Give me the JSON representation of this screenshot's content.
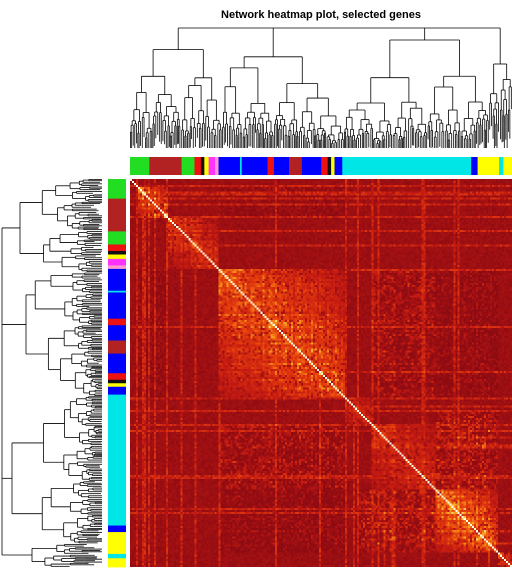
{
  "chart_data": {
    "type": "heatmap",
    "title": "Network heatmap plot, selected genes",
    "subtitle": "",
    "xlabel": "",
    "ylabel": "",
    "legend": "none",
    "grid": false,
    "colormap": [
      "#8b0a12",
      "#c41a12",
      "#e8420c",
      "#f7a21e",
      "#ffe38a",
      "#fffde2"
    ],
    "matrix_order": "dendrogram",
    "modules": [
      {
        "name": "green",
        "color": "#22dd22",
        "size": 0.045
      },
      {
        "name": "brown",
        "color": "#b22222",
        "size": 0.075
      },
      {
        "name": "green",
        "color": "#22dd22",
        "size": 0.03
      },
      {
        "name": "red",
        "color": "#ee1111",
        "size": 0.015
      },
      {
        "name": "black",
        "color": "#111111",
        "size": 0.008
      },
      {
        "name": "yellow",
        "color": "#ffff00",
        "size": 0.01
      },
      {
        "name": "magenta",
        "color": "#ff33ff",
        "size": 0.015
      },
      {
        "name": "pink",
        "color": "#ff99cc",
        "size": 0.008
      },
      {
        "name": "blue",
        "color": "#0000ff",
        "size": 0.05
      },
      {
        "name": "turquoise",
        "color": "#00e5e5",
        "size": 0.004
      },
      {
        "name": "blue",
        "color": "#0000ff",
        "size": 0.06
      },
      {
        "name": "red",
        "color": "#ee1111",
        "size": 0.015
      },
      {
        "name": "blue",
        "color": "#0000ff",
        "size": 0.035
      },
      {
        "name": "brown",
        "color": "#b22222",
        "size": 0.03
      },
      {
        "name": "blue",
        "color": "#0000ff",
        "size": 0.045
      },
      {
        "name": "red",
        "color": "#ee1111",
        "size": 0.015
      },
      {
        "name": "black",
        "color": "#111111",
        "size": 0.008
      },
      {
        "name": "yellow",
        "color": "#ffff00",
        "size": 0.008
      },
      {
        "name": "blue",
        "color": "#0000ff",
        "size": 0.018
      },
      {
        "name": "turquoise",
        "color": "#00e5e5",
        "size": 0.3
      },
      {
        "name": "blue",
        "color": "#0000ff",
        "size": 0.015
      },
      {
        "name": "yellow",
        "color": "#ffff00",
        "size": 0.05
      },
      {
        "name": "turquoise",
        "color": "#00e5e5",
        "size": 0.01
      },
      {
        "name": "yellow",
        "color": "#ffff00",
        "size": 0.02
      }
    ],
    "diagonal_blocks": [
      {
        "start": 0.02,
        "end": 0.1,
        "intensity": 0.8
      },
      {
        "start": 0.1,
        "end": 0.23,
        "intensity": 0.55
      },
      {
        "start": 0.23,
        "end": 0.56,
        "intensity": 0.75
      },
      {
        "start": 0.56,
        "end": 0.63,
        "intensity": 0.45
      },
      {
        "start": 0.63,
        "end": 0.8,
        "intensity": 0.5
      },
      {
        "start": 0.8,
        "end": 0.96,
        "intensity": 0.85
      },
      {
        "start": 0.96,
        "end": 1.0,
        "intensity": 0.6
      }
    ],
    "offdiagonal_blocks": [
      {
        "a": [
          0.23,
          0.56
        ],
        "b": [
          0.63,
          0.8
        ],
        "intensity": 0.35
      },
      {
        "a": [
          0.6,
          0.8
        ],
        "b": [
          0.8,
          0.96
        ],
        "intensity": 0.45
      },
      {
        "a": [
          0.02,
          0.1
        ],
        "b": [
          0.23,
          0.56
        ],
        "intensity": 0.2
      },
      {
        "a": [
          0.23,
          0.56
        ],
        "b": [
          0.8,
          0.96
        ],
        "intensity": 0.2
      }
    ],
    "dendrogram_groups": [
      {
        "start": 0.0,
        "end": 0.24,
        "height": 0.82
      },
      {
        "start": 0.24,
        "end": 0.56,
        "height": 0.76
      },
      {
        "start": 0.56,
        "end": 0.94,
        "height": 0.9
      },
      {
        "start": 0.94,
        "end": 1.0,
        "height": 0.7
      }
    ]
  }
}
